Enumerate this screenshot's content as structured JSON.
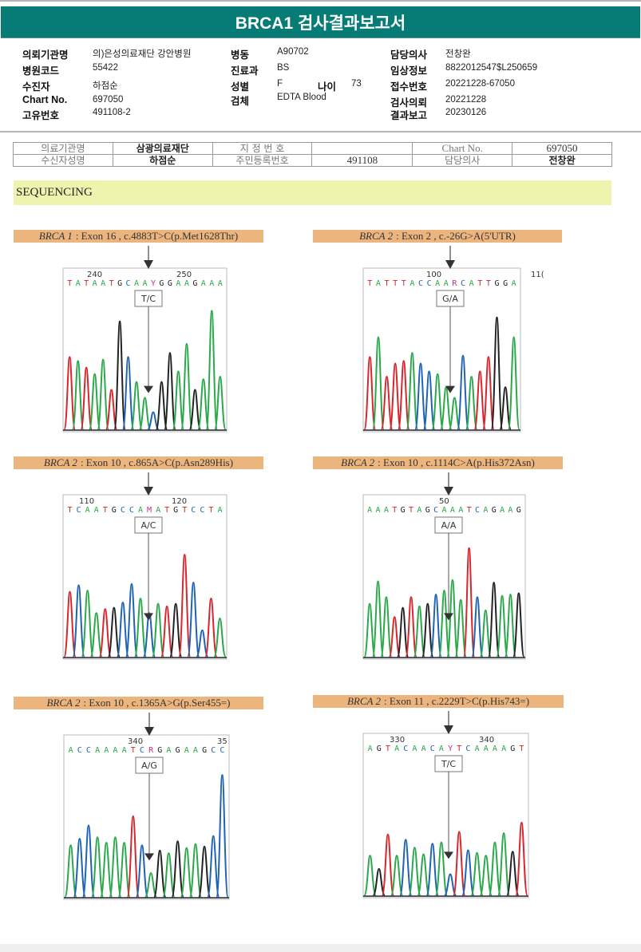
{
  "report": {
    "title": "BRCA1 검사결과보고서",
    "fields": [
      {
        "label": "의뢰기관명",
        "value": "의)은성의료재단 강안병원"
      },
      {
        "label": "병원코드",
        "value": "55422"
      },
      {
        "label": "수진자",
        "value": "하점순"
      },
      {
        "label": "Chart No.",
        "value": "697050"
      },
      {
        "label": "고유번호",
        "value": "491108-2"
      },
      {
        "label": "병동",
        "value": "A90702"
      },
      {
        "label": "진료과",
        "value": "BS"
      },
      {
        "label": "성별",
        "value": "F"
      },
      {
        "label": "나이",
        "value": "73"
      },
      {
        "label": "검체",
        "value": "EDTA Blood"
      },
      {
        "label": "담당의사",
        "value": "전창완"
      },
      {
        "label": "임상정보",
        "value": "8822012547$L250659"
      },
      {
        "label": "접수번호",
        "value": "20221228-67050"
      },
      {
        "label": "검사의뢰",
        "value": "20221228"
      },
      {
        "label": "결과보고",
        "value": "20230126"
      }
    ]
  },
  "request_table": {
    "rows": [
      [
        "의료기관명",
        "삼광의료재단",
        "지 정 번 호",
        "",
        "Chart No.",
        "697050"
      ],
      [
        "수신자성명",
        "하점순",
        "주민등록번호",
        "491108",
        "담당의사",
        "전창완"
      ]
    ]
  },
  "section": {
    "title": "SEQUENCING"
  },
  "variants": [
    {
      "gene": "BRCA 1",
      "desc": ": Exon 16 , c.4883T>C(p.Met1628Thr)",
      "call": "T/C",
      "seq": "TATAATGCAAYGGAAGAAA",
      "ticks": [
        "240",
        "250"
      ]
    },
    {
      "gene": "BRCA 2",
      "desc": ": Exon 2 , c.-26G>A(5'UTR)",
      "call": "G/A",
      "seq": "TATTTACCAARCATTGGA",
      "ticks": [
        "100",
        "11("
      ]
    },
    {
      "gene": "BRCA 2",
      "desc": ": Exon 10 , c.865A>C(p.Asn289His)",
      "call": "A/C",
      "seq": "TCAATGCCAMATGTCCTA",
      "ticks": [
        "110",
        "120"
      ]
    },
    {
      "gene": "BRCA 2",
      "desc": ": Exon 10 , c.1114C>A(p.His372Asn)",
      "call": "A/A",
      "seq": "AAATGTAGCAAATCAGAAG",
      "ticks": [
        "50"
      ]
    },
    {
      "gene": "BRCA 2",
      "desc": ": Exon 10 , c.1365A>G(p.Ser455=)",
      "call": "A/G",
      "seq": "ACCAAAATCRGAGAAGCC",
      "ticks": [
        "340",
        "35"
      ]
    },
    {
      "gene": "BRCA 2",
      "desc": ": Exon 11 , c.2229T>C(p.His743=)",
      "call": "T/C",
      "seq": "AGTACAACAYTCAAAAGT",
      "ticks": [
        "330",
        "340"
      ]
    }
  ],
  "colors": {
    "header": "#077b75",
    "variant_bar": "#edb57e",
    "section_bar": "#eef4ae",
    "base_A": "#2aa84a",
    "base_C": "#1f63b5",
    "base_G": "#222222",
    "base_T": "#d8262c",
    "ambiguous": "#c2338a"
  }
}
